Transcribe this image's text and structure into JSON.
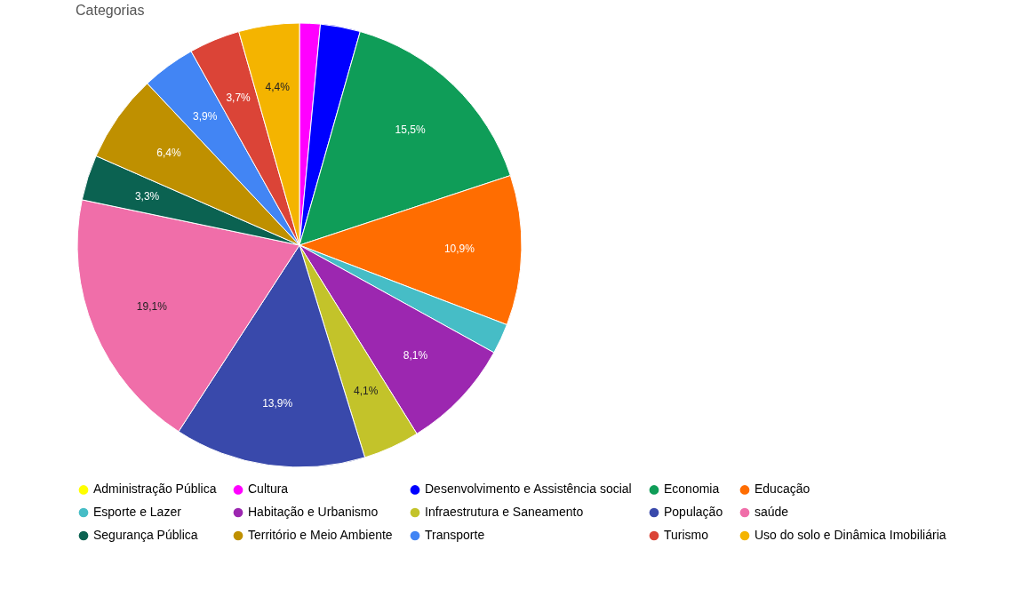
{
  "chart_data": {
    "type": "pie",
    "title": "Categorias",
    "categories": [
      "Administração Pública",
      "Cultura",
      "Desenvolvimento e Assistência social",
      "Economia",
      "Educação",
      "Esporte e Lazer",
      "Habitação e Urbanismo",
      "Infraestrutura e Saneamento",
      "População",
      "saúde",
      "Segurança Pública",
      "Território e Meio Ambiente",
      "Transporte",
      "Turismo",
      "Uso do solo e Dinâmica Imobiliária"
    ],
    "values": [
      null,
      1.5,
      2.9,
      15.5,
      10.9,
      2.2,
      8.1,
      4.1,
      13.9,
      19.1,
      3.3,
      6.4,
      3.9,
      3.7,
      4.4
    ],
    "value_labels": [
      null,
      null,
      null,
      "15,5%",
      "10,9%",
      null,
      "8,1%",
      "4,1%",
      "13,9%",
      "19,1%",
      "3,3%",
      "6,4%",
      "3,9%",
      "3,7%",
      "4,4%"
    ],
    "colors": [
      "#ffff00",
      "#ff00ff",
      "#0000ff",
      "#0f9d58",
      "#ff6d01",
      "#46bdc6",
      "#9c27b0",
      "#c3c32a",
      "#3949ab",
      "#f06ea9",
      "#0b6251",
      "#bf9000",
      "#4285f4",
      "#db4437",
      "#f4b400"
    ],
    "legend": "bottom"
  }
}
